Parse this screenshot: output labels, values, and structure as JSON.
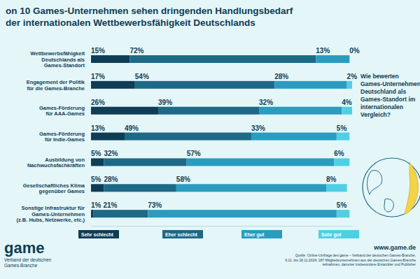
{
  "chart_data": {
    "type": "bar",
    "orientation": "horizontal",
    "stacked": true,
    "data_labels": true,
    "tick_labels": false,
    "grid": false,
    "legend": "bottom",
    "title": "on 10 Games-Unternehmen sehen dringenden Handlungsbedarf\nder internationalen Wettbewerbsfähigkeit Deutschlands",
    "annotations": [
      "Wie bewerten\nGames-Unternehmen\nDeutschland als\nGames-Standort im\ninternationalen\nVergleich?"
    ],
    "categories": [
      "Wettbewerbsfähigkeit\nDeutschlands als\nGames-Standort",
      "Engagement der Politik\nfür die Games-Branche",
      "Games-Förderung\nfür AAA-Games",
      "Games-Förderung\nfür Indie-Games",
      "Ausbildung von\nNachwuchsfachkräften",
      "Gesellschaftliches Klima\ngegenüber Games",
      "Sonstige Infrastruktur für\nGames-Unternehmen\n(z.B. Hubs, Netzwerke, etc.)"
    ],
    "xlim": [
      0,
      101
    ],
    "series": [
      {
        "name": "Sehr schlecht",
        "color": "#0f3d56",
        "values": [
          15,
          17,
          26,
          13,
          5,
          5,
          1
        ],
        "value_labels": [
          "15%",
          "17%",
          "26%",
          "13%",
          "5%",
          "5%",
          "1%"
        ]
      },
      {
        "name": "Eher schlecht",
        "color": "#1d6a87",
        "values": [
          72,
          54,
          39,
          49,
          32,
          28,
          21
        ],
        "value_labels": [
          "72%",
          "54%",
          "39%",
          "49%",
          "32%",
          "28%",
          "21%"
        ]
      },
      {
        "name": "Eher gut",
        "color": "#2a9cbf",
        "values": [
          13,
          28,
          32,
          33,
          57,
          58,
          73
        ],
        "value_labels": [
          "13%",
          "28%",
          "32%",
          "33%",
          "57%",
          "58%",
          "73%"
        ]
      },
      {
        "name": "Sehr gut",
        "color": "#4fcfe3",
        "values": [
          0,
          2,
          4,
          5,
          6,
          8,
          5
        ],
        "value_labels": [
          "0%",
          "2%",
          "4%",
          "5%",
          "6%",
          "8%",
          "5%"
        ]
      }
    ]
  },
  "footer": {
    "logo": "game",
    "logo_text": "Verband der deutschen\nGames-Branche",
    "url": "www.game.de",
    "source": "Quelle: Online-Umfrage des game – Verband der deutschen Games-Branche,\n6.11. bis 18.11.2024; 187 Mitgliedsunternehmen aus der deutschen Games-Branche\nteilnahmen, darunter insbesondere Entwickler und Publisher"
  }
}
